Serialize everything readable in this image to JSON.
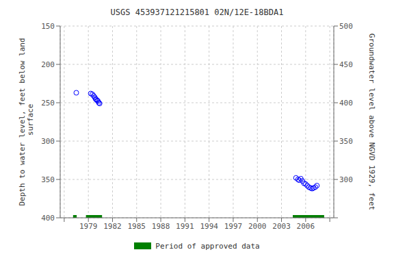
{
  "chart_data": {
    "type": "scatter",
    "title": "USGS 453937121215801 02N/12E-18BDA1",
    "xlim": [
      1975.5,
      2009.5
    ],
    "xticks": [
      {
        "value": 1976,
        "label": null
      },
      1979,
      1982,
      1985,
      1988,
      1991,
      1994,
      1997,
      2000,
      2003,
      2006,
      {
        "value": 2009,
        "label": null
      }
    ],
    "ylim": [
      400,
      150
    ],
    "yticks": [
      150,
      200,
      250,
      300,
      350,
      400
    ],
    "ylabel": "Depth to water level, feet below land\n surface",
    "y2lim": [
      250,
      500
    ],
    "y2ticks": [
      {
        "value": 250,
        "label": null
      },
      300,
      350,
      400,
      450,
      500
    ],
    "y2label": "Groundwater level above NGVD 1929, feet",
    "grid": true,
    "legend": "bottom",
    "series": [
      {
        "type": "scatter",
        "color": "#0000ff",
        "marker": "open circle",
        "x": [
          1977.5,
          1979.3,
          1979.5,
          1979.65,
          1979.8,
          1979.9,
          1980.0,
          1980.1,
          1980.2,
          1980.3,
          1980.4
        ],
        "y": [
          237,
          238,
          239,
          241,
          243,
          245,
          246,
          247,
          248,
          250,
          251
        ]
      },
      {
        "type": "scatter",
        "color": "#0000ff",
        "marker": "open circle",
        "x": [
          2004.8,
          2005.05,
          2005.2,
          2005.4,
          2005.6,
          2005.8,
          2006.0,
          2006.2,
          2006.4,
          2006.6,
          2006.8,
          2007.0,
          2007.2,
          2007.4
        ],
        "y": [
          348,
          350,
          351,
          349,
          352,
          355,
          356,
          358,
          360,
          361,
          362,
          361,
          360,
          358
        ]
      },
      {
        "type": "span",
        "name": "Period of approved data",
        "color": "#008000",
        "spans": [
          [
            1977.1,
            1977.55
          ],
          [
            1978.7,
            1980.7
          ],
          [
            2004.4,
            2008.3
          ]
        ]
      }
    ]
  }
}
